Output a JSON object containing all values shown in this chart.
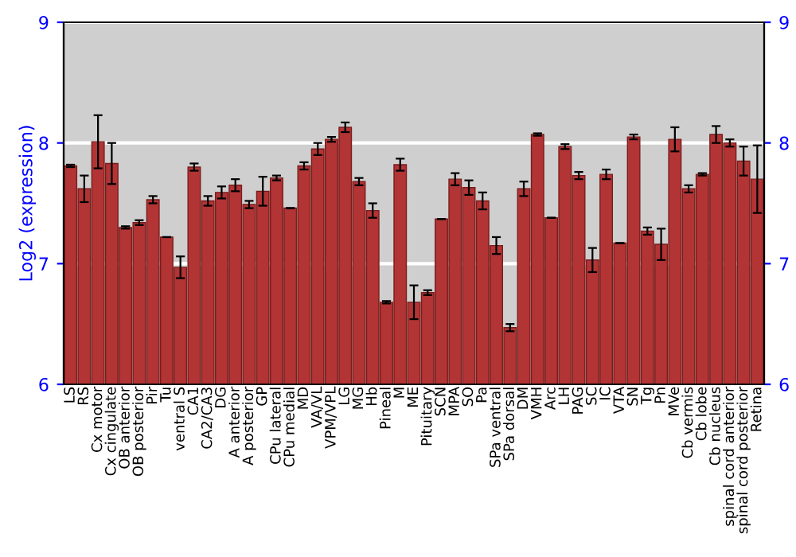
{
  "chart_data": {
    "type": "bar",
    "ylabel": "Log2 (expression)",
    "categories": [
      "LS",
      "RS",
      "Cx motor",
      "Cx cingulate",
      "OB anterior",
      "OB posterior",
      "Pir",
      "Tu",
      "ventral S",
      "CA1",
      "CA2/CA3",
      "DG",
      "A anterior",
      "A posterior",
      "GP",
      "CPu lateral",
      "CPu medial",
      "MD",
      "VA/VL",
      "VPM/VPL",
      "LG",
      "MG",
      "Hb",
      "Pineal",
      "M",
      "ME",
      "Pituitary",
      "SCN",
      "MPA",
      "SO",
      "Pa",
      "SPa ventral",
      "SPa dorsal",
      "DM",
      "VMH",
      "Arc",
      "LH",
      "PAG",
      "SC",
      "IC",
      "VTA",
      "SN",
      "Tg",
      "Pn",
      "MVe",
      "Cb vermis",
      "Cb lobe",
      "Cb nucleus",
      "spinal cord anterior",
      "spinal cord posterior",
      "Retina"
    ],
    "values": [
      7.81,
      7.62,
      8.01,
      7.83,
      7.3,
      7.34,
      7.53,
      7.22,
      6.97,
      7.8,
      7.52,
      7.59,
      7.65,
      7.49,
      7.6,
      7.71,
      7.46,
      7.81,
      7.95,
      8.03,
      8.13,
      7.68,
      7.44,
      6.68,
      7.82,
      6.68,
      6.76,
      7.37,
      7.7,
      7.63,
      7.52,
      7.15,
      6.47,
      7.62,
      8.07,
      7.38,
      7.97,
      7.73,
      7.03,
      7.74,
      7.17,
      8.05,
      7.27,
      7.16,
      8.03,
      7.62,
      7.74,
      8.07,
      8.0,
      7.85,
      7.7
    ],
    "errors": [
      0.01,
      0.11,
      0.22,
      0.17,
      0.01,
      0.02,
      0.03,
      null,
      0.09,
      0.03,
      0.04,
      0.05,
      0.05,
      0.03,
      0.12,
      0.02,
      null,
      0.03,
      0.05,
      0.02,
      0.04,
      0.03,
      0.06,
      0.01,
      0.05,
      0.14,
      0.02,
      null,
      0.05,
      0.06,
      0.07,
      0.07,
      0.03,
      0.06,
      0.01,
      null,
      0.02,
      0.03,
      0.1,
      0.04,
      null,
      0.02,
      0.03,
      0.13,
      0.1,
      0.03,
      0.01,
      0.07,
      0.03,
      0.12,
      0.28
    ],
    "color": "#b23434",
    "ylim": [
      6,
      9
    ],
    "yticks": [
      6,
      7,
      8,
      9
    ],
    "y2lim": [
      6,
      9
    ],
    "y2ticks": [
      6,
      7,
      8,
      9
    ],
    "grid": "y"
  }
}
